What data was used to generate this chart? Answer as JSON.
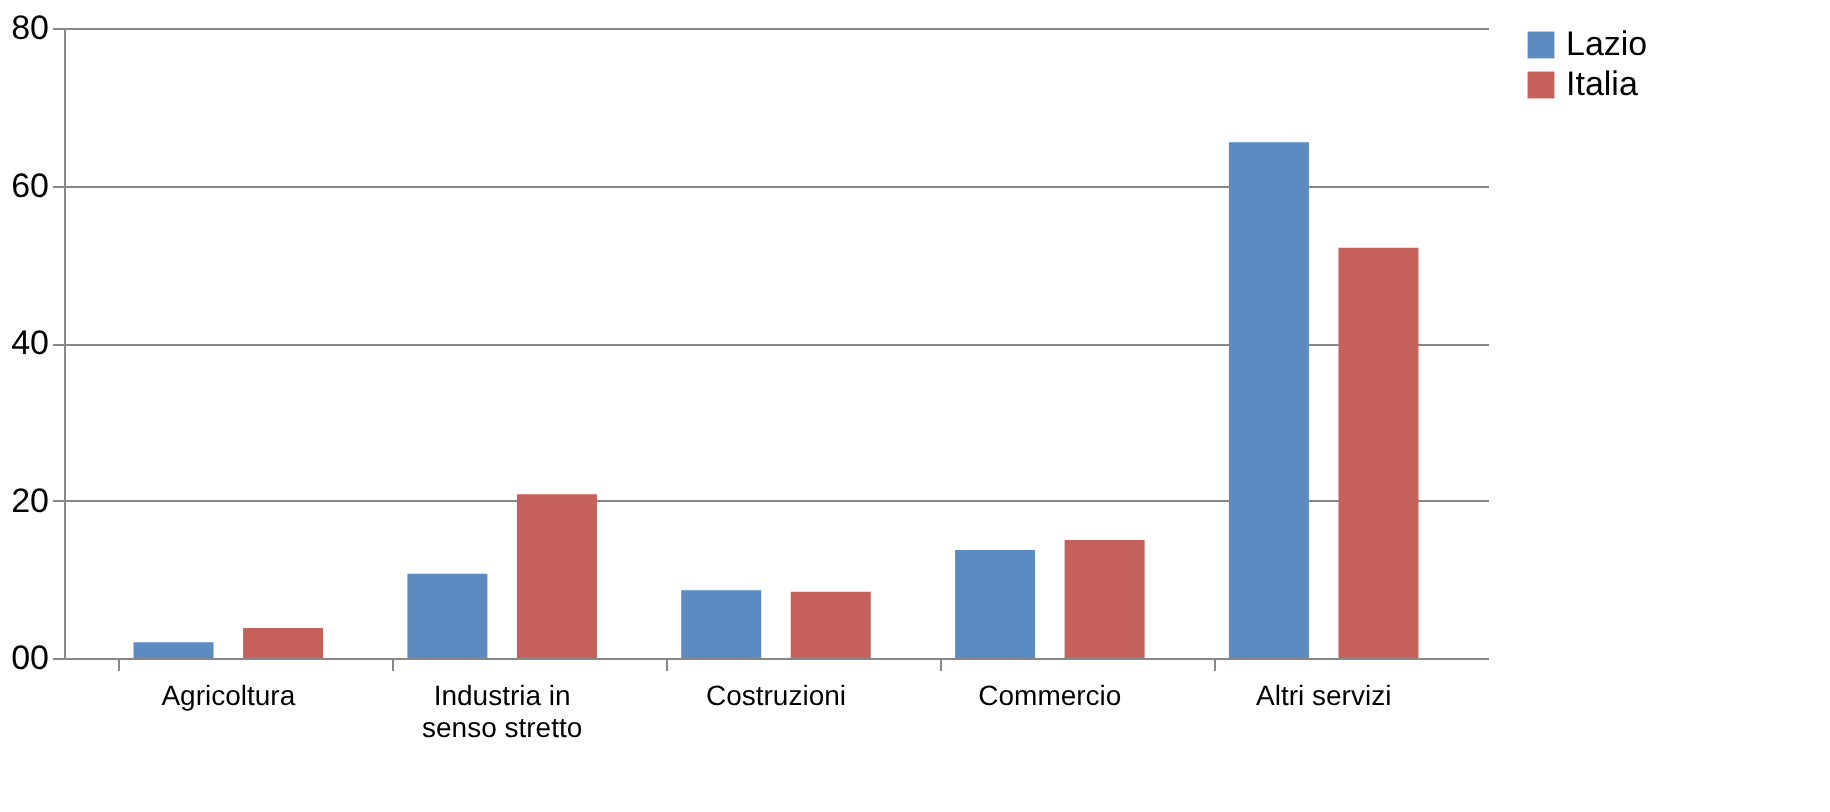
{
  "chart_data": {
    "type": "bar",
    "categories": [
      "Agricoltura",
      "Industria in senso stretto",
      "Costruzioni",
      "Commercio",
      "Altri servizi"
    ],
    "series": [
      {
        "name": "Lazio",
        "color": "#5b8bc1",
        "values": [
          2.0,
          10.7,
          8.6,
          13.7,
          65.5
        ]
      },
      {
        "name": "Italia",
        "color": "#c6605a",
        "values": [
          3.8,
          20.8,
          8.4,
          15.0,
          52.1
        ]
      }
    ],
    "ylim": [
      0,
      80
    ],
    "yticks": [
      {
        "value": 0,
        "label": "00"
      },
      20,
      40,
      60,
      80
    ],
    "grid": "y",
    "legend": "right"
  }
}
